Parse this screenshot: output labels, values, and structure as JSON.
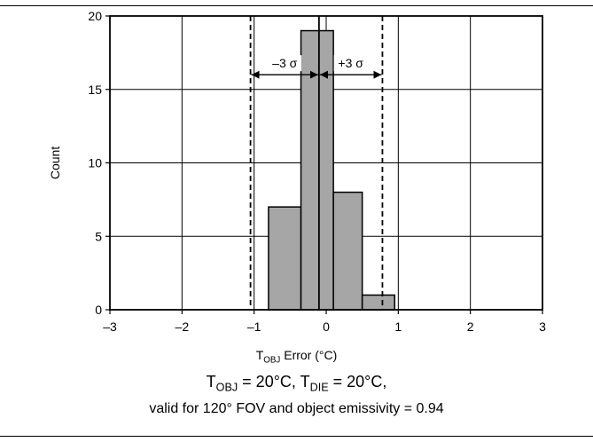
{
  "chart_data": {
    "type": "bar",
    "title": "",
    "xlabel": {
      "main": "T",
      "sub": "OBJ",
      "rest": " Error (°C)"
    },
    "ylabel": "Count",
    "xlim": [
      -3,
      3
    ],
    "ylim": [
      0,
      20
    ],
    "x_ticks": [
      "–3",
      "–2",
      "–1",
      "0",
      "1",
      "2",
      "3"
    ],
    "y_ticks": [
      "0",
      "5",
      "10",
      "15",
      "20"
    ],
    "grid": true,
    "bins": [
      {
        "x0": -0.8,
        "x1": -0.35,
        "count": 7
      },
      {
        "x0": -0.35,
        "x1": 0.1,
        "count": 19
      },
      {
        "x0": 0.1,
        "x1": 0.5,
        "count": 8
      },
      {
        "x0": 0.5,
        "x1": 0.95,
        "count": 1
      }
    ],
    "mean_line_x": -0.1,
    "sigma_lines": {
      "minus": -1.05,
      "plus": 0.78,
      "arrow_y": 16
    },
    "annotations": {
      "minus_label": "–3 σ",
      "plus_label": "+3 σ"
    }
  },
  "caption": {
    "line1": {
      "t1": "T",
      "s1": "OBJ",
      "m1": " = 20°C, ",
      "t2": "T",
      "s2": "DIE",
      "m2": " = 20°C,"
    },
    "line2": "valid for 120° FOV and object emissivity = 0.94"
  }
}
